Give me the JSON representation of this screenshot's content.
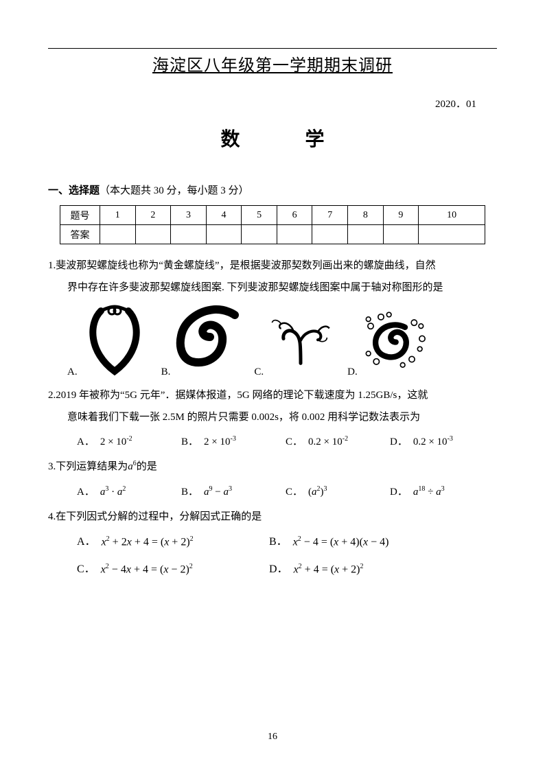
{
  "header": {
    "title_main": "海淀区八年级第一学期期末调研",
    "date": "2020．01",
    "subject": "数 学"
  },
  "section1": {
    "title_bold": "一、选择题",
    "title_rest": "（本大题共 30 分，每小题 3 分）"
  },
  "answer_table": {
    "row1_label": "题号",
    "row2_label": "答案",
    "cols": [
      "1",
      "2",
      "3",
      "4",
      "5",
      "6",
      "7",
      "8",
      "9",
      "10"
    ]
  },
  "q1": {
    "number": "1.",
    "text_a": "斐波那契螺旋线也称为“黄金螺旋线”，是根据斐波那契数列画出来的螺旋曲线，自然",
    "text_b": "界中存在许多斐波那契螺旋线图案. 下列斐波那契螺旋线图案中属于轴对称图形的是",
    "labels": [
      "A.",
      "B.",
      "C.",
      "D."
    ]
  },
  "q2": {
    "number": "2.",
    "text_a": "2019 年被称为“5G 元年”．据媒体报道，5G 网络的理论下载速度为 1.25GB/s，这就",
    "text_b": "意味着我们下载一张 2.5M 的照片只需要 0.002s，将 0.002 用科学记数法表示为",
    "choices": {
      "A": {
        "label": "A．",
        "html": "2 × 10<sup>-2</sup>"
      },
      "B": {
        "label": "B．",
        "html": "2 × 10<sup>-3</sup>"
      },
      "C": {
        "label": "C．",
        "html": "0.2 × 10<sup>-2</sup>"
      },
      "D": {
        "label": "D．",
        "html": "0.2 × 10<sup>-3</sup>"
      }
    }
  },
  "q3": {
    "number": "3.",
    "text": "下列运算结果为<span class='it'>a</span><sup style='font-size:10px'>6</sup>的是",
    "choices": {
      "A": {
        "label": "A．",
        "html": "<span class='it'>a</span><sup>3</sup> · <span class='it'>a</span><sup>2</sup>"
      },
      "B": {
        "label": "B．",
        "html": "<span class='it'>a</span><sup>9</sup> − <span class='it'>a</span><sup>3</sup>"
      },
      "C": {
        "label": "C．",
        "html": "(<span class='it'>a</span><sup>2</sup>)<sup>3</sup>"
      },
      "D": {
        "label": "D．",
        "html": "<span class='it'>a</span><sup>18</sup> ÷ <span class='it'>a</span><sup>3</sup>"
      }
    }
  },
  "q4": {
    "number": "4.",
    "text": "在下列因式分解的过程中，分解因式正确的是",
    "choices": {
      "A": {
        "label": "A．",
        "html": "<span class='it'>x</span><sup>2</sup> + 2<span class='it'>x</span> + 4 = (<span class='it'>x</span> + 2)<sup>2</sup>"
      },
      "B": {
        "label": "B．",
        "html": "<span class='it'>x</span><sup>2</sup> − 4 = (<span class='it'>x</span> + 4)(<span class='it'>x</span> − 4)"
      },
      "C": {
        "label": "C．",
        "html": "<span class='it'>x</span><sup>2</sup> − 4<span class='it'>x</span> + 4 = (<span class='it'>x</span> − 2)<sup>2</sup>"
      },
      "D": {
        "label": "D．",
        "html": "<span class='it'>x</span><sup>2</sup> + 4 = (<span class='it'>x</span> + 2)<sup>2</sup>"
      }
    }
  },
  "footer": {
    "page_number": "16"
  },
  "colors": {
    "text": "#000000",
    "background": "#ffffff",
    "border": "#000000"
  }
}
